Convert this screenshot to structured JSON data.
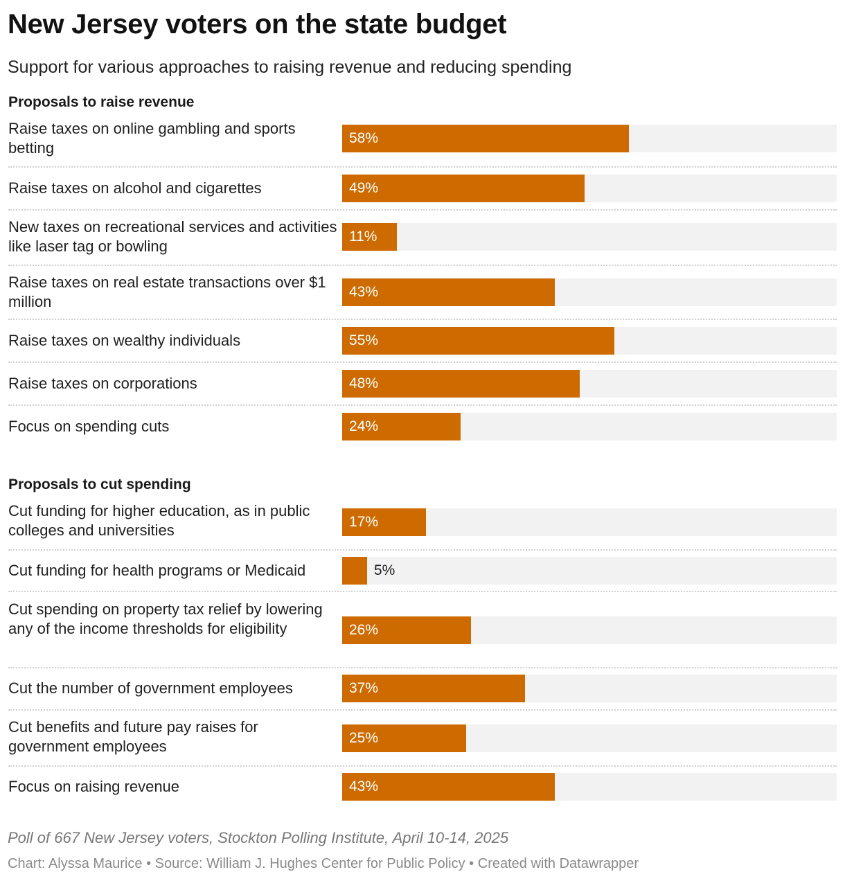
{
  "title": "New Jersey voters on the state budget",
  "subtitle": "Support for various approaches to raising revenue and reducing spending",
  "notes": "Poll of 667 New Jersey voters, Stockton Polling Institute, April 10-14, 2025",
  "footer": {
    "byline": "Chart: Alyssa Maurice",
    "separator": "•",
    "source": "Source: William J. Hughes Center for Public Policy",
    "credit": "Created with Datawrapper"
  },
  "colors": {
    "bar": "#cd6a00",
    "track": "#f2f2f2"
  },
  "chart_data": {
    "type": "bar",
    "orientation": "horizontal",
    "xlim": [
      0,
      100
    ],
    "unit": "%",
    "grid": false,
    "legend": "none",
    "groups": [
      {
        "title": "Proposals to raise revenue",
        "categories": [
          "Raise taxes on online gambling and sports betting",
          "Raise taxes on alcohol and cigarettes",
          "New taxes on recreational services and activities like laser tag or bowling",
          "Raise taxes on real estate transactions over $1 million",
          "Raise taxes on wealthy individuals",
          "Raise taxes on corporations",
          "Focus on spending cuts"
        ],
        "values": [
          58,
          49,
          11,
          43,
          55,
          48,
          24
        ],
        "labels": [
          "58%",
          "49%",
          "11%",
          "43%",
          "55%",
          "48%",
          "24%"
        ]
      },
      {
        "title": "Proposals to cut spending",
        "categories": [
          "Cut funding for higher education, as in public colleges and universities",
          "Cut funding for health programs or Medicaid",
          "Cut spending on property tax relief by lowering any of the income thresholds for eligibility",
          "Cut the number of government employees",
          "Cut benefits and future pay raises for government employees",
          "Focus on raising revenue"
        ],
        "values": [
          17,
          5,
          26,
          37,
          25,
          43
        ],
        "labels": [
          "17%",
          "5%",
          "26%",
          "37%",
          "25%",
          "43%"
        ]
      }
    ]
  }
}
